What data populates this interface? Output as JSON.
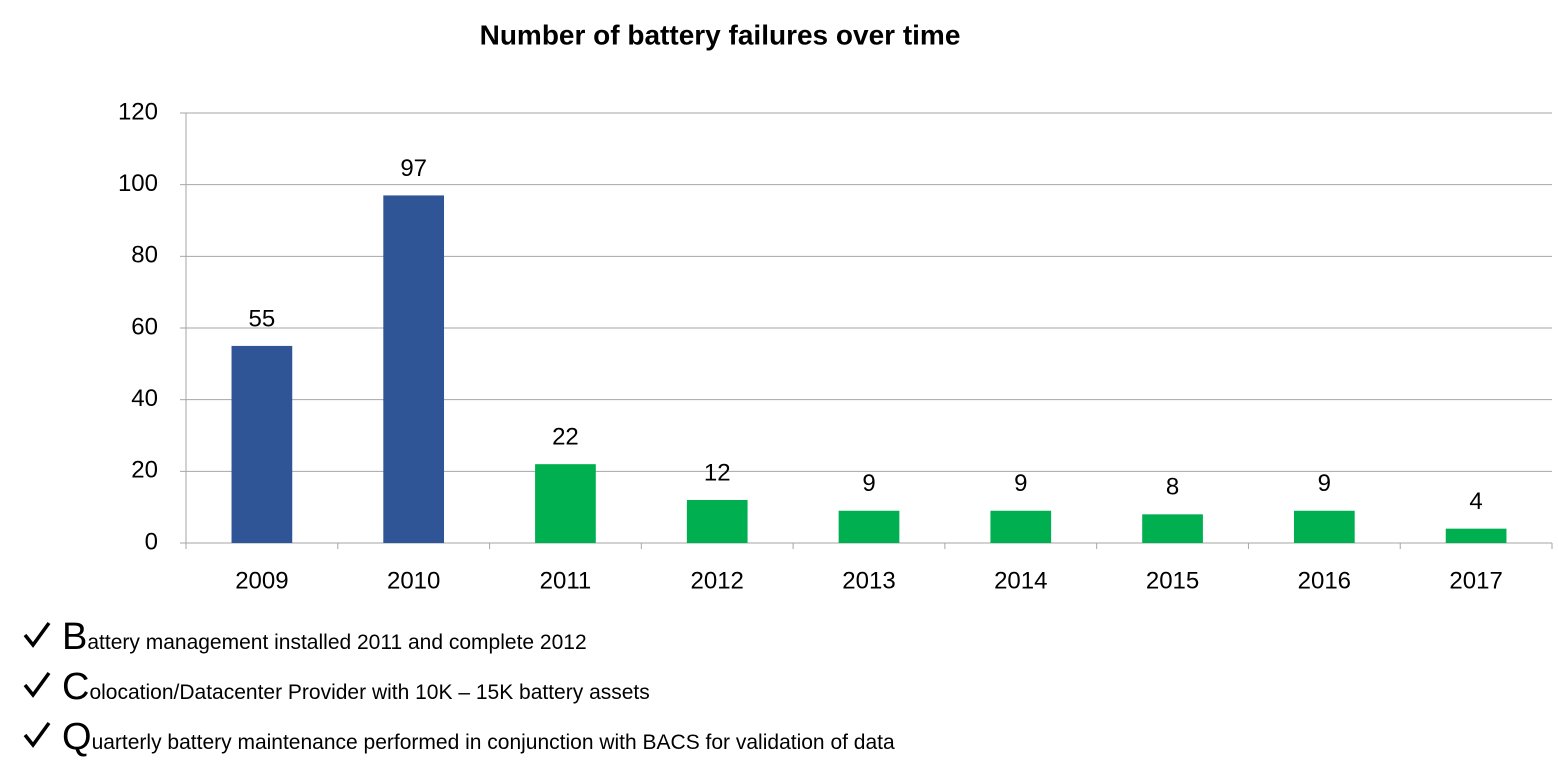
{
  "chart_data": {
    "type": "bar",
    "title": "Number of battery failures over time",
    "categories": [
      "2009",
      "2010",
      "2011",
      "2012",
      "2013",
      "2014",
      "2015",
      "2016",
      "2017"
    ],
    "values": [
      55,
      97,
      22,
      12,
      9,
      9,
      8,
      9,
      4
    ],
    "colors": [
      "#2f5597",
      "#2f5597",
      "#00b050",
      "#00b050",
      "#00b050",
      "#00b050",
      "#00b050",
      "#00b050",
      "#00b050"
    ],
    "ylim": [
      0,
      120
    ],
    "yticks": [
      0,
      20,
      40,
      60,
      80,
      100,
      120
    ],
    "grid": true,
    "data_labels": true
  },
  "notes": [
    "Battery management installed 2011 and complete 2012",
    "Colocation/Datacenter Provider with 10K – 15K battery assets",
    "Quarterly battery maintenance performed in conjunction with BACS for validation of data"
  ]
}
